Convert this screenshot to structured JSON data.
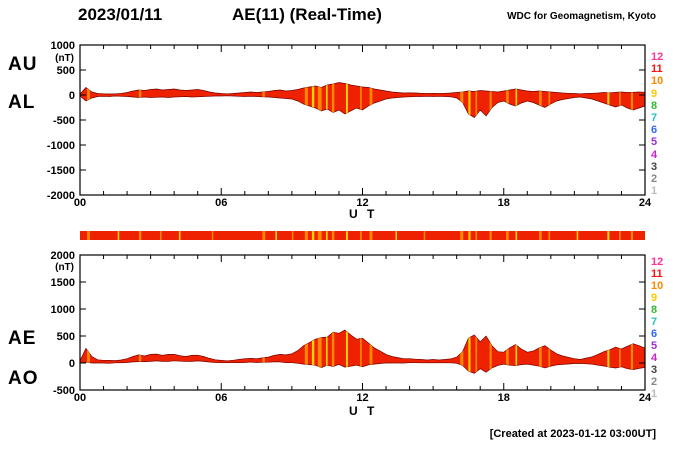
{
  "header": {
    "date": "2023/01/11",
    "title": "AE(11) (Real-Time)",
    "credit": "WDC for Geomagnetism, Kyoto"
  },
  "footer": {
    "created": "[Created at 2023-01-12 03:00UT]"
  },
  "legend": {
    "values": [
      12,
      11,
      10,
      9,
      8,
      7,
      6,
      5,
      4,
      3,
      2,
      1
    ],
    "colors": [
      "#ff3399",
      "#ff1111",
      "#ff8800",
      "#ffc800",
      "#33bb33",
      "#2fbfbf",
      "#3366ff",
      "#9933cc",
      "#cc22cc",
      "#444444",
      "#888888",
      "#bbbbbb"
    ]
  },
  "colors": {
    "fill": "#ee2200",
    "outline": "#7a0000",
    "stripe_o": "#ff8800",
    "stripe_y": "#ffd400",
    "frame": "#000000"
  },
  "availability_bar": {
    "base_color": "#ee2200",
    "segments": [
      [
        0.3,
        0.12,
        "o"
      ],
      [
        1.6,
        0.05,
        "y"
      ],
      [
        2.5,
        0.1,
        "o"
      ],
      [
        3.4,
        0.05,
        "o"
      ],
      [
        4.2,
        0.07,
        "y"
      ],
      [
        5.6,
        0.05,
        "o"
      ],
      [
        7.75,
        0.12,
        "o"
      ],
      [
        8.3,
        0.07,
        "y"
      ],
      [
        9.0,
        0.05,
        "o"
      ],
      [
        9.55,
        0.13,
        "o"
      ],
      [
        9.85,
        0.1,
        "y"
      ],
      [
        10.1,
        0.16,
        "o"
      ],
      [
        10.45,
        0.07,
        "y"
      ],
      [
        10.7,
        0.1,
        "o"
      ],
      [
        11.3,
        0.08,
        "y"
      ],
      [
        11.9,
        0.07,
        "o"
      ],
      [
        12.3,
        0.12,
        "o"
      ],
      [
        13.4,
        0.05,
        "y"
      ],
      [
        14.6,
        0.05,
        "o"
      ],
      [
        16.15,
        0.13,
        "o"
      ],
      [
        16.5,
        0.09,
        "y"
      ],
      [
        16.8,
        0.07,
        "o"
      ],
      [
        17.4,
        0.09,
        "o"
      ],
      [
        18.1,
        0.11,
        "o"
      ],
      [
        18.5,
        0.07,
        "y"
      ],
      [
        19.5,
        0.11,
        "o"
      ],
      [
        19.9,
        0.07,
        "o"
      ],
      [
        21.1,
        0.05,
        "y"
      ],
      [
        22.4,
        0.09,
        "y"
      ],
      [
        22.9,
        0.07,
        "o"
      ],
      [
        23.4,
        0.09,
        "o"
      ]
    ]
  },
  "chart_data": [
    {
      "type": "area",
      "panel": "top",
      "xlabel": "U T",
      "ylabel": "(nT)",
      "xlim": [
        0,
        24
      ],
      "ylim": [
        -2000,
        1000
      ],
      "yticks": [
        1000,
        500,
        0,
        -500,
        -1000,
        -1500,
        -2000
      ],
      "xtick_hours": [
        0,
        6,
        12,
        18,
        24
      ],
      "xtick_labels": [
        "00",
        "06",
        "12",
        "18",
        "24"
      ],
      "t_start": 0,
      "t_step": 0.25,
      "series": [
        {
          "name": "AU",
          "values": [
            20,
            150,
            60,
            30,
            25,
            20,
            25,
            30,
            50,
            80,
            100,
            90,
            110,
            120,
            100,
            110,
            120,
            100,
            90,
            100,
            110,
            90,
            60,
            40,
            30,
            25,
            30,
            40,
            50,
            60,
            50,
            60,
            70,
            90,
            100,
            80,
            90,
            110,
            140,
            160,
            180,
            150,
            200,
            220,
            250,
            230,
            200,
            180,
            160,
            150,
            120,
            100,
            80,
            60,
            50,
            40,
            45,
            40,
            35,
            30,
            35,
            30,
            35,
            40,
            50,
            60,
            80,
            70,
            90,
            80,
            70,
            60,
            80,
            100,
            120,
            100,
            80,
            70,
            80,
            70,
            60,
            50,
            40,
            35,
            30,
            25,
            30,
            35,
            40,
            50,
            45,
            55,
            60,
            50,
            55,
            60,
            55
          ]
        },
        {
          "name": "AL",
          "values": [
            -20,
            -120,
            -60,
            -30,
            -25,
            -30,
            -20,
            -25,
            -30,
            -40,
            -50,
            -40,
            -50,
            -45,
            -40,
            -50,
            -40,
            -35,
            -30,
            -40,
            -35,
            -30,
            -25,
            -20,
            -20,
            -15,
            -20,
            -25,
            -30,
            -25,
            -30,
            -35,
            -40,
            -50,
            -60,
            -70,
            -80,
            -120,
            -180,
            -220,
            -260,
            -320,
            -280,
            -350,
            -300,
            -380,
            -320,
            -260,
            -300,
            -220,
            -160,
            -120,
            -80,
            -60,
            -50,
            -40,
            -35,
            -30,
            -30,
            -25,
            -30,
            -25,
            -30,
            -35,
            -60,
            -150,
            -380,
            -450,
            -300,
            -420,
            -250,
            -150,
            -120,
            -180,
            -220,
            -160,
            -120,
            -150,
            -200,
            -250,
            -180,
            -120,
            -90,
            -70,
            -50,
            -40,
            -60,
            -80,
            -120,
            -160,
            -200,
            -240,
            -200,
            -260,
            -300,
            -260,
            -220
          ]
        }
      ],
      "stripes": [
        [
          0.3,
          0.12,
          "o"
        ],
        [
          2.5,
          0.1,
          "o"
        ],
        [
          7.75,
          0.1,
          "o"
        ],
        [
          9.55,
          0.13,
          "o"
        ],
        [
          9.85,
          0.1,
          "y"
        ],
        [
          10.1,
          0.16,
          "o"
        ],
        [
          10.45,
          0.07,
          "y"
        ],
        [
          10.7,
          0.1,
          "o"
        ],
        [
          11.3,
          0.08,
          "y"
        ],
        [
          11.9,
          0.07,
          "o"
        ],
        [
          12.3,
          0.12,
          "o"
        ],
        [
          16.15,
          0.13,
          "o"
        ],
        [
          16.5,
          0.09,
          "y"
        ],
        [
          16.8,
          0.07,
          "o"
        ],
        [
          17.4,
          0.09,
          "o"
        ],
        [
          18.1,
          0.11,
          "o"
        ],
        [
          18.5,
          0.07,
          "y"
        ],
        [
          19.5,
          0.11,
          "o"
        ],
        [
          19.9,
          0.07,
          "o"
        ],
        [
          22.4,
          0.09,
          "y"
        ],
        [
          22.9,
          0.07,
          "o"
        ],
        [
          23.4,
          0.09,
          "o"
        ]
      ]
    },
    {
      "type": "area",
      "panel": "bottom",
      "xlabel": "U T",
      "ylabel": "(nT)",
      "xlim": [
        0,
        24
      ],
      "ylim": [
        -500,
        2000
      ],
      "yticks": [
        2000,
        1500,
        1000,
        500,
        0,
        -500
      ],
      "xtick_hours": [
        0,
        6,
        12,
        18,
        24
      ],
      "xtick_labels": [
        "00",
        "06",
        "12",
        "18",
        "24"
      ],
      "t_start": 0,
      "t_step": 0.25,
      "series": [
        {
          "name": "AE",
          "values": [
            40,
            270,
            120,
            60,
            50,
            50,
            45,
            55,
            80,
            120,
            150,
            130,
            160,
            165,
            140,
            160,
            160,
            135,
            120,
            140,
            145,
            120,
            85,
            60,
            50,
            40,
            50,
            65,
            80,
            85,
            80,
            95,
            110,
            140,
            160,
            150,
            170,
            230,
            320,
            380,
            440,
            470,
            480,
            570,
            550,
            610,
            520,
            440,
            460,
            370,
            280,
            220,
            160,
            120,
            100,
            80,
            80,
            70,
            65,
            55,
            65,
            55,
            65,
            75,
            110,
            210,
            460,
            520,
            390,
            500,
            320,
            210,
            200,
            280,
            340,
            260,
            200,
            220,
            280,
            320,
            240,
            170,
            130,
            105,
            80,
            65,
            90,
            115,
            160,
            210,
            245,
            295,
            260,
            310,
            355,
            320,
            275
          ]
        },
        {
          "name": "AO",
          "values": [
            0,
            15,
            0,
            0,
            0,
            -5,
            3,
            3,
            10,
            20,
            25,
            25,
            30,
            38,
            30,
            30,
            40,
            33,
            30,
            30,
            38,
            30,
            18,
            10,
            5,
            5,
            5,
            8,
            10,
            18,
            10,
            13,
            15,
            20,
            20,
            5,
            5,
            -5,
            -20,
            -30,
            -40,
            -85,
            -40,
            -65,
            -25,
            -75,
            -60,
            -40,
            -70,
            -35,
            -20,
            -10,
            0,
            0,
            0,
            0,
            5,
            5,
            3,
            3,
            3,
            3,
            3,
            3,
            -5,
            -45,
            -150,
            -190,
            -105,
            -170,
            -90,
            -45,
            -20,
            -40,
            -50,
            -30,
            -20,
            -40,
            -60,
            -90,
            -60,
            -35,
            -25,
            -18,
            -10,
            -8,
            -15,
            -23,
            -40,
            -55,
            -78,
            -93,
            -70,
            -105,
            -123,
            -100,
            -83
          ]
        }
      ],
      "stripes": [
        [
          0.3,
          0.12,
          "o"
        ],
        [
          2.5,
          0.1,
          "o"
        ],
        [
          7.75,
          0.1,
          "o"
        ],
        [
          9.55,
          0.13,
          "o"
        ],
        [
          9.85,
          0.1,
          "y"
        ],
        [
          10.1,
          0.16,
          "o"
        ],
        [
          10.45,
          0.07,
          "y"
        ],
        [
          10.7,
          0.1,
          "o"
        ],
        [
          11.3,
          0.08,
          "y"
        ],
        [
          11.9,
          0.07,
          "o"
        ],
        [
          12.3,
          0.12,
          "o"
        ],
        [
          16.15,
          0.13,
          "o"
        ],
        [
          16.5,
          0.09,
          "y"
        ],
        [
          16.8,
          0.07,
          "o"
        ],
        [
          17.4,
          0.09,
          "o"
        ],
        [
          18.1,
          0.11,
          "o"
        ],
        [
          18.5,
          0.07,
          "y"
        ],
        [
          19.5,
          0.11,
          "o"
        ],
        [
          19.9,
          0.07,
          "o"
        ],
        [
          22.4,
          0.09,
          "y"
        ],
        [
          22.9,
          0.07,
          "o"
        ],
        [
          23.4,
          0.09,
          "o"
        ]
      ]
    }
  ]
}
